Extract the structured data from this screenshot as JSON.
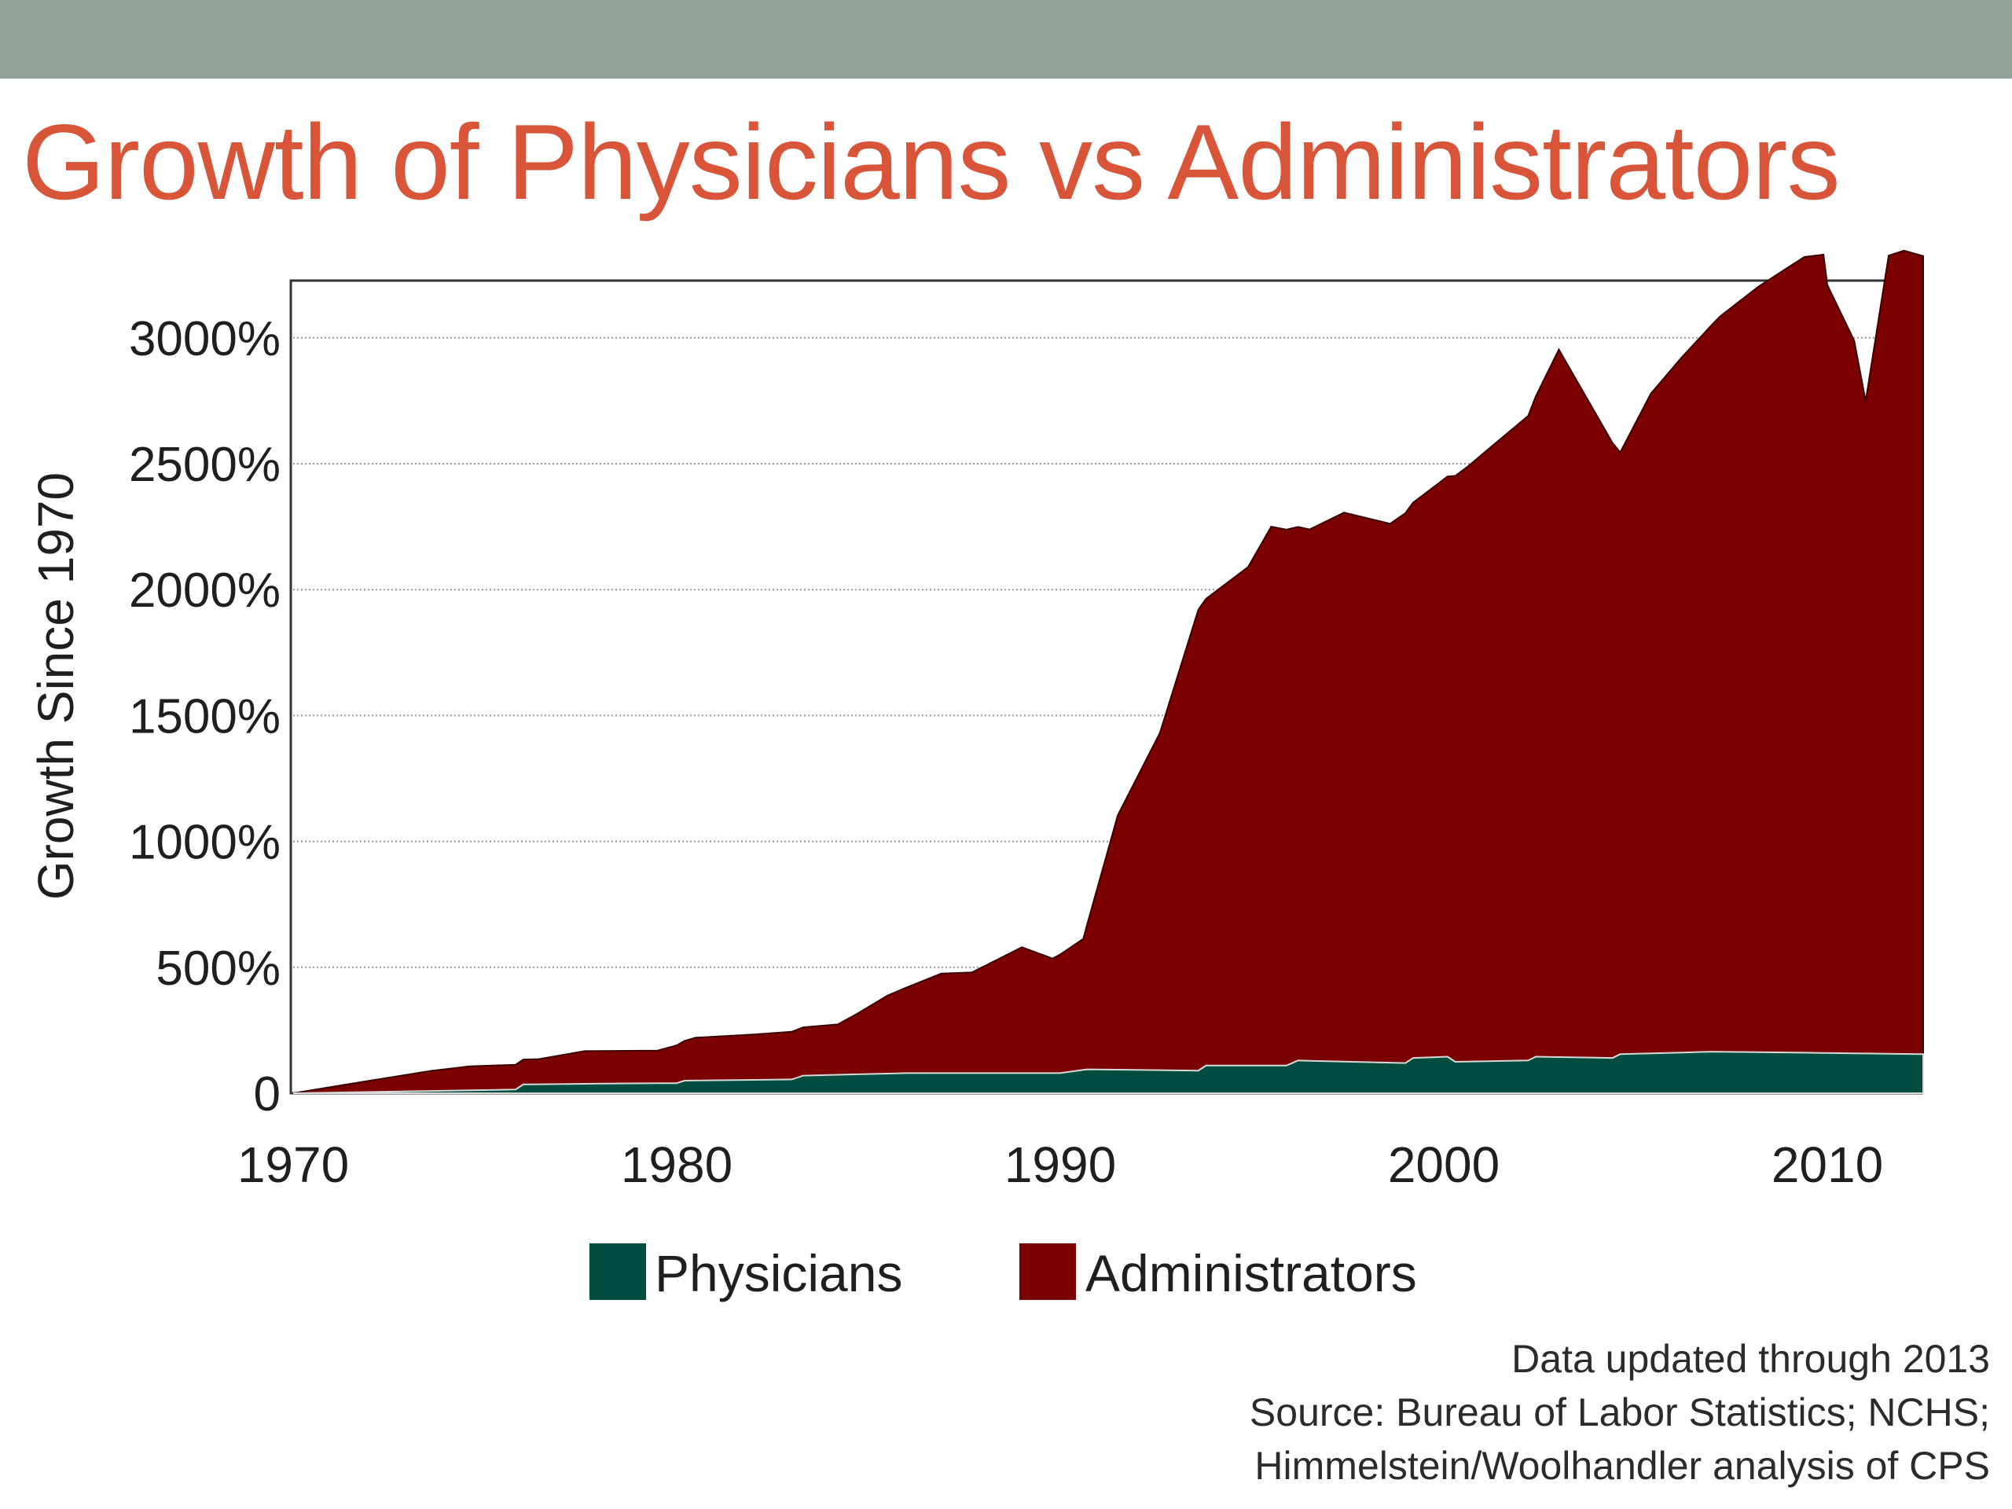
{
  "title": "Growth of Physicians vs Administrators",
  "colors": {
    "top_bar": "#93a39a",
    "title": "#d8553a",
    "physicians": "#004d40",
    "administrators": "#7b0000"
  },
  "chart_data": {
    "type": "area",
    "stacked": true,
    "title": "Growth of Physicians vs Administrators",
    "xlabel": "",
    "ylabel": "Growth Since 1970",
    "xlim": [
      1970,
      2012.5
    ],
    "ylim": [
      0,
      3220
    ],
    "x_ticks": [
      1970,
      1980,
      1990,
      2000,
      2010
    ],
    "y_ticks": [
      0,
      500,
      1000,
      1500,
      2000,
      2500,
      3000
    ],
    "y_tick_labels": [
      "0",
      "500%",
      "1000%",
      "1500%",
      "2000%",
      "2500%",
      "3000%"
    ],
    "grid": "horizontal dotted",
    "legend_position": "bottom-center",
    "series": [
      {
        "name": "Physicians",
        "color": "#004d40",
        "points": [
          [
            1970,
            0
          ],
          [
            1972,
            5
          ],
          [
            1974,
            10
          ],
          [
            1975.8,
            15
          ],
          [
            1976,
            35
          ],
          [
            1978,
            38
          ],
          [
            1980,
            40
          ],
          [
            1980.2,
            50
          ],
          [
            1983,
            55
          ],
          [
            1983.3,
            70
          ],
          [
            1986,
            80
          ],
          [
            1990,
            80
          ],
          [
            1990.7,
            95
          ],
          [
            1993.6,
            90
          ],
          [
            1993.8,
            110
          ],
          [
            1995.9,
            110
          ],
          [
            1996.2,
            130
          ],
          [
            1999,
            120
          ],
          [
            1999.2,
            140
          ],
          [
            2000.1,
            145
          ],
          [
            2000.3,
            125
          ],
          [
            2002.2,
            130
          ],
          [
            2002.4,
            145
          ],
          [
            2004.4,
            140
          ],
          [
            2004.6,
            155
          ],
          [
            2007,
            165
          ],
          [
            2010,
            160
          ],
          [
            2012.5,
            155
          ]
        ]
      },
      {
        "name": "Administrators",
        "color": "#7b0000",
        "points": [
          [
            1970,
            0
          ],
          [
            1972,
            45
          ],
          [
            1973.6,
            80
          ],
          [
            1974.6,
            95
          ],
          [
            1976.4,
            100
          ],
          [
            1977.6,
            130
          ],
          [
            1979.5,
            130
          ],
          [
            1980.5,
            170
          ],
          [
            1982,
            180
          ],
          [
            1984.2,
            200
          ],
          [
            1984.7,
            240
          ],
          [
            1985.5,
            310
          ],
          [
            1986.9,
            395
          ],
          [
            1987.7,
            400
          ],
          [
            1989,
            500
          ],
          [
            1989.8,
            455
          ],
          [
            1990.6,
            520
          ],
          [
            1991.5,
            1010
          ],
          [
            1992.6,
            1340
          ],
          [
            1993.6,
            1830
          ],
          [
            1994.9,
            1980
          ],
          [
            1995.5,
            2140
          ],
          [
            1996.5,
            2110
          ],
          [
            1997.4,
            2180
          ],
          [
            1998.6,
            2140
          ],
          [
            1999.7,
            2260
          ],
          [
            2000.6,
            2360
          ],
          [
            2001.4,
            2460
          ],
          [
            2002.2,
            2560
          ],
          [
            2003,
            2810
          ],
          [
            2004.6,
            2390
          ],
          [
            2005.4,
            2620
          ],
          [
            2006.2,
            2760
          ],
          [
            2007.2,
            2920
          ],
          [
            2008.2,
            3040
          ],
          [
            2009.4,
            3160
          ],
          [
            2009.9,
            3170
          ],
          [
            2010,
            3050
          ],
          [
            2010.7,
            2830
          ],
          [
            2011,
            2590
          ],
          [
            2011.6,
            3170
          ],
          [
            2012,
            3190
          ],
          [
            2012.5,
            3170
          ]
        ]
      }
    ]
  },
  "legend": [
    {
      "label": "Physicians",
      "color": "#004d40"
    },
    {
      "label": "Administrators",
      "color": "#7b0000"
    }
  ],
  "source_note": {
    "line1": "Data updated through 2013",
    "line2": "Source: Bureau of Labor Statistics; NCHS;",
    "line3": "Himmelstein/Woolhandler analysis of CPS"
  }
}
